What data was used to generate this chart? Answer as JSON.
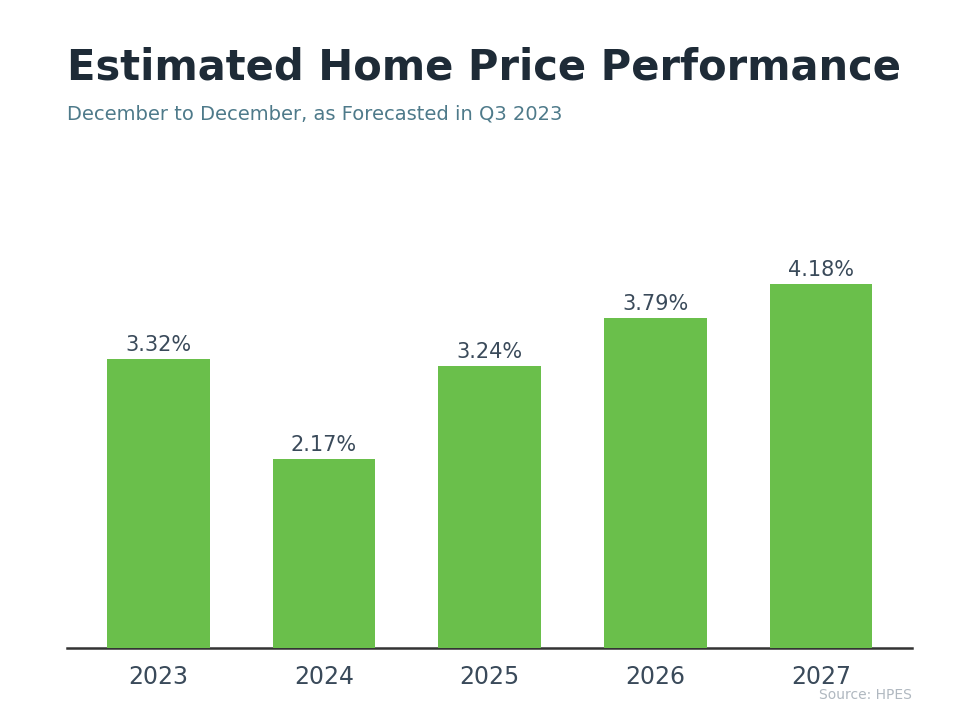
{
  "title": "Estimated Home Price Performance",
  "subtitle": "December to December, as Forecasted in Q3 2023",
  "source": "Source: HPES",
  "categories": [
    "2023",
    "2024",
    "2025",
    "2026",
    "2027"
  ],
  "values": [
    3.32,
    2.17,
    3.24,
    3.79,
    4.18
  ],
  "labels": [
    "3.32%",
    "2.17%",
    "3.24%",
    "3.79%",
    "4.18%"
  ],
  "bar_color": "#6abf4b",
  "title_color": "#1e2b37",
  "subtitle_color": "#4e7a8a",
  "tick_color": "#3a4a5a",
  "source_color": "#b0b8c0",
  "top_bar_color": "#29abe2",
  "background_color": "#ffffff",
  "ylim": [
    0,
    4.8
  ],
  "bar_width": 0.62,
  "label_fontsize": 15,
  "tick_fontsize": 17,
  "title_fontsize": 30,
  "subtitle_fontsize": 14
}
